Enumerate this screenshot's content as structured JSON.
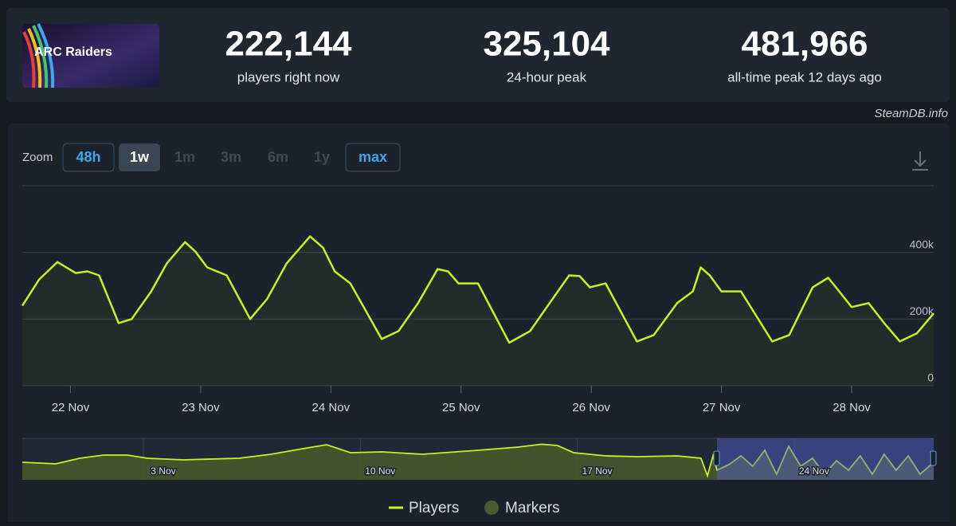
{
  "header": {
    "game_logo": "ARC Raiders",
    "stats": [
      {
        "value": "222,144",
        "label": "players right now"
      },
      {
        "value": "325,104",
        "label": "24-hour peak"
      },
      {
        "value": "481,966",
        "label": "all-time peak 12 days ago"
      }
    ],
    "source": "SteamDB.info"
  },
  "zoom": {
    "label": "Zoom",
    "options": [
      "48h",
      "1w",
      "1m",
      "3m",
      "6m",
      "1y",
      "max"
    ]
  },
  "chart_data": [
    {
      "type": "line",
      "x": [
        21.63,
        21.76,
        21.9,
        22.04,
        22.13,
        22.22,
        22.37,
        22.47,
        22.62,
        22.74,
        22.88,
        22.96,
        23.05,
        23.2,
        23.38,
        23.51,
        23.66,
        23.84,
        23.94,
        24.03,
        24.15,
        24.39,
        24.52,
        24.67,
        24.82,
        24.9,
        24.98,
        25.13,
        25.37,
        25.53,
        25.68,
        25.83,
        25.91,
        25.99,
        26.11,
        26.35,
        26.48,
        26.66,
        26.78,
        26.84,
        26.91,
        27.0,
        27.15,
        27.39,
        27.52,
        27.7,
        27.82,
        27.88,
        28.0,
        28.13,
        28.25,
        28.37,
        28.5,
        28.63
      ],
      "series": [
        {
          "name": "Players",
          "color": "#c6f222",
          "values": [
            240000,
            319000,
            371000,
            338000,
            343000,
            331000,
            188000,
            200000,
            283000,
            367000,
            431000,
            402000,
            355000,
            331000,
            200000,
            260000,
            367000,
            448000,
            414000,
            343000,
            307000,
            140000,
            164000,
            248000,
            350000,
            343000,
            307000,
            307000,
            129000,
            164000,
            248000,
            331000,
            329000,
            295000,
            307000,
            133000,
            152000,
            248000,
            283000,
            355000,
            331000,
            283000,
            283000,
            133000,
            152000,
            295000,
            324000,
            295000,
            236000,
            248000,
            188000,
            133000,
            157000,
            217000
          ]
        }
      ],
      "markers": {
        "name": "Markers",
        "color": "#4b5a2c"
      },
      "xlim": [
        21.63,
        28.63
      ],
      "xticks": [
        {
          "value": 22,
          "label": "22 Nov"
        },
        {
          "value": 23,
          "label": "23 Nov"
        },
        {
          "value": 24,
          "label": "24 Nov"
        },
        {
          "value": 25,
          "label": "25 Nov"
        },
        {
          "value": 26,
          "label": "26 Nov"
        },
        {
          "value": 27,
          "label": "27 Nov"
        },
        {
          "value": 28,
          "label": "28 Nov"
        }
      ],
      "ylim": [
        0,
        600000
      ],
      "yticks": [
        0,
        {
          "value": 200000,
          "label": "200k"
        },
        {
          "value": 400000,
          "label": "400k"
        }
      ],
      "grid": true
    },
    {
      "type": "area",
      "color": "#c6f222",
      "x": [
        -1.55,
        -0.47,
        0.3,
        1.07,
        1.84,
        2.49,
        3.64,
        5.44,
        6.47,
        7.5,
        8.27,
        9.04,
        10.07,
        11.35,
        13.15,
        14.44,
        15.21,
        15.72,
        16.24,
        17.27,
        18.3,
        19.58,
        20.35,
        20.56,
        20.74,
        20.87,
        21.25,
        21.64,
        22.02,
        22.41,
        22.79,
        23.18,
        23.57,
        23.95,
        24.34,
        24.72,
        25.11,
        25.49,
        25.88,
        26.26,
        26.65,
        27.04,
        27.42,
        27.86
      ],
      "values": [
        237000,
        215000,
        291000,
        334000,
        334000,
        291000,
        269000,
        291000,
        345000,
        420000,
        474000,
        366000,
        377000,
        345000,
        398000,
        442000,
        480000,
        463000,
        366000,
        323000,
        312000,
        323000,
        291000,
        54000,
        323000,
        129000,
        205000,
        323000,
        183000,
        398000,
        75000,
        452000,
        183000,
        291000,
        75000,
        258000,
        129000,
        323000,
        75000,
        345000,
        129000,
        323000,
        75000,
        237000
      ],
      "xlim": [
        -1.55,
        27.86
      ],
      "xticks": [
        {
          "value": 3,
          "label": "3 Nov"
        },
        {
          "value": 10,
          "label": "10 Nov"
        },
        {
          "value": 17,
          "label": "17 Nov"
        },
        {
          "value": 24,
          "label": "24 Nov"
        }
      ],
      "ylim": [
        0,
        560000
      ]
    }
  ]
}
